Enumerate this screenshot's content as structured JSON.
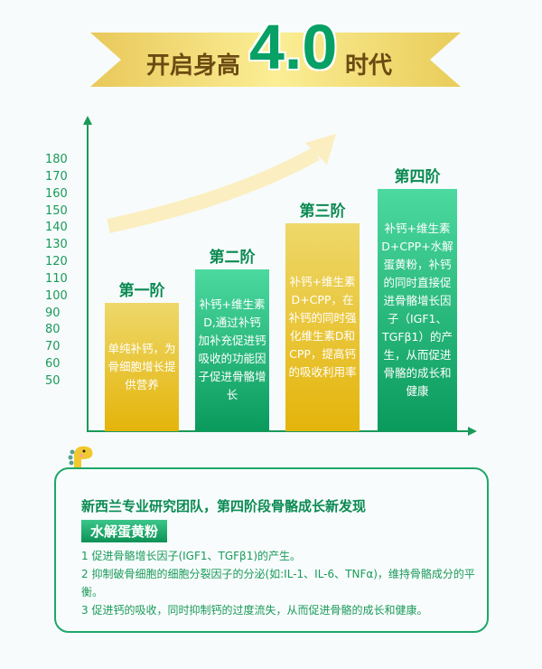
{
  "banner": {
    "prefix": "开启身高",
    "number": "4.0",
    "suffix": "时代"
  },
  "chart_data": {
    "type": "bar",
    "title": "",
    "xlabel": "",
    "ylabel": "",
    "ylim": [
      50,
      180
    ],
    "yticks": [
      180,
      170,
      160,
      150,
      140,
      130,
      120,
      110,
      100,
      90,
      80,
      70,
      60,
      50
    ],
    "categories": [
      "第一阶",
      "第二阶",
      "第三阶",
      "第四阶"
    ],
    "values": [
      96,
      116,
      143,
      163
    ],
    "descriptions": [
      "单纯补钙，为骨细胞增长提供营养",
      "补钙+维生素D,通过补钙加补充促进钙吸收的功能因子促进骨骼增长",
      "补钙+维生素D+CPP，在补钙的同时强化维生素D和CPP，提高钙的吸收利用率",
      "补钙+维生素D+CPP+水解蛋黄粉，补钙的同时直接促进骨骼增长因子（IGF1、TGFβ1）的产生，从而促进骨骼的成长和健康"
    ],
    "colors": [
      "#e4b40a",
      "#0a9a5c",
      "#e4b40a",
      "#0a9a5c"
    ]
  },
  "card": {
    "title": "新西兰专业研究团队，第四阶段骨骼成长新发现",
    "tag": "水解蛋黄粉",
    "items": [
      "1 促进骨骼增长因子(IGF1、TGFβ1)的产生。",
      "2 抑制破骨细胞的细胞分裂因子的分泌(如:IL-1、IL-6、TNFα)，维持骨骼成分的平衡。",
      "3 促进钙的吸收，同时抑制钙的过度流失，从而促进骨骼的成长和健康。"
    ]
  }
}
